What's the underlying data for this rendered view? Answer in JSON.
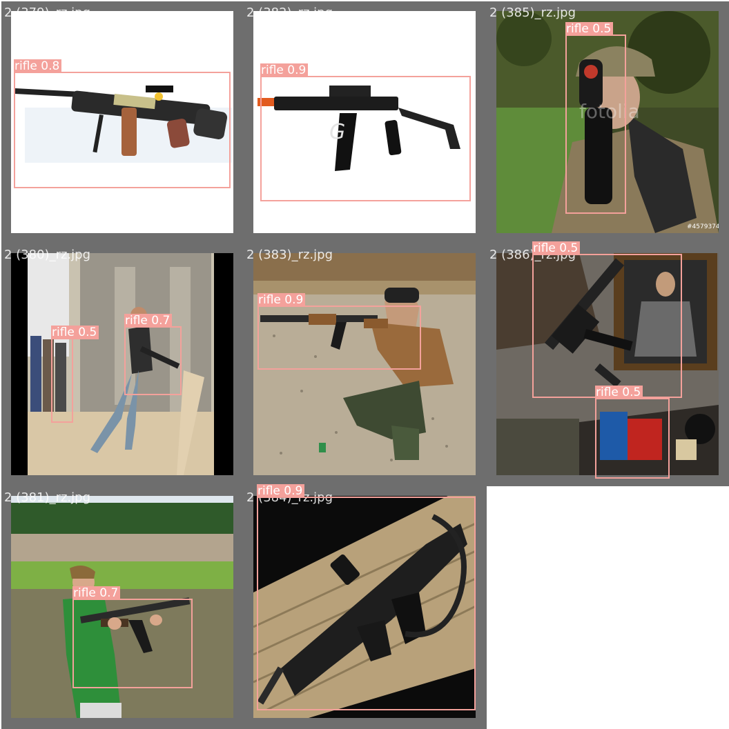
{
  "tiles": [
    {
      "filename": "2 (379)_rz.jpg",
      "scene": "toy machine gun on white background",
      "detections": [
        {
          "label": "rifle 0.8",
          "class": "rifle",
          "confidence": 0.8
        }
      ]
    },
    {
      "filename": "2 (382)_rz.jpg",
      "scene": "airsoft rifle with folding stock on white background",
      "detections": [
        {
          "label": "rifle 0.9",
          "class": "rifle",
          "confidence": 0.9
        }
      ]
    },
    {
      "filename": "2 (385)_rz.jpg",
      "scene": "soldier aiming rifle with scope",
      "watermark": "fotolia",
      "stock_id": "#45793747",
      "detections": [
        {
          "label": "rifle 0.5",
          "class": "rifle",
          "confidence": 0.5
        }
      ]
    },
    {
      "filename": "2 (380)_rz.jpg",
      "scene": "people near building with weapon",
      "detections": [
        {
          "label": "rifle 0.5",
          "class": "rifle",
          "confidence": 0.5
        },
        {
          "label": "rifle 0.7",
          "class": "rifle",
          "confidence": 0.7
        }
      ]
    },
    {
      "filename": "2 (383)_rz.jpg",
      "scene": "man kneeling and aiming rifle on gravel range",
      "detections": [
        {
          "label": "rifle 0.9",
          "class": "rifle",
          "confidence": 0.9
        }
      ]
    },
    {
      "filename": "2 (386)_rz.jpg",
      "scene": "rifle leaning against wall beneath portrait",
      "detections": [
        {
          "label": "rifle 0.5",
          "class": "rifle",
          "confidence": 0.5
        },
        {
          "label": "rifle 0.5",
          "class": "rifle",
          "confidence": 0.5
        }
      ]
    },
    {
      "filename": "2 (381)_rz.jpg",
      "scene": "boy firing rifle in a field",
      "detections": [
        {
          "label": "rifle 0.7",
          "class": "rifle",
          "confidence": 0.7
        }
      ]
    },
    {
      "filename": "2 (384)_rz.jpg",
      "scene": "bullpup rifle lying on tan case",
      "detections": [
        {
          "label": "rifle 0.9",
          "class": "rifle",
          "confidence": 0.9
        }
      ]
    }
  ],
  "colors": {
    "tile_frame": "#6e6e6e",
    "box_stroke": "#f4a19b",
    "label_text": "#ffffff"
  }
}
